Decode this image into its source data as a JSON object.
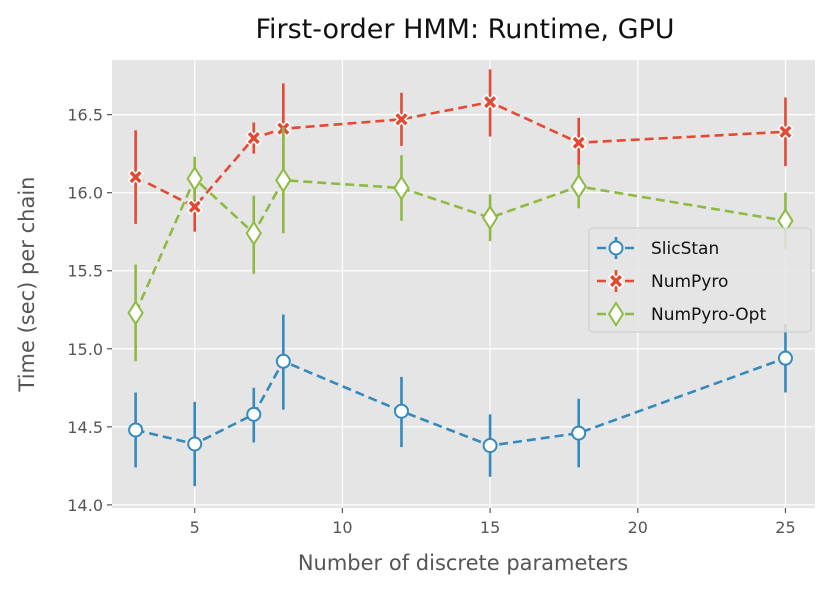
{
  "chart_data": {
    "type": "line",
    "title": "First-order HMM: Runtime, GPU",
    "xlabel": "Number of discrete parameters",
    "ylabel": "Time (sec) per chain",
    "xlim": [
      2.2,
      26.0
    ],
    "ylim": [
      13.98,
      16.85
    ],
    "xticks": [
      5,
      10,
      15,
      20,
      25
    ],
    "yticks": [
      14.0,
      14.5,
      15.0,
      15.5,
      16.0,
      16.5
    ],
    "xtick_labels": [
      "5",
      "10",
      "15",
      "20",
      "25"
    ],
    "ytick_labels": [
      "14.0",
      "14.5",
      "15.0",
      "15.5",
      "16.0",
      "16.5"
    ],
    "grid": true,
    "legend_position": "center-right",
    "x": [
      3,
      5,
      7,
      8,
      12,
      15,
      18,
      25
    ],
    "series": [
      {
        "name": "SlicStan",
        "color": "#348ABD",
        "marker": "circle",
        "values": [
          14.48,
          14.39,
          14.58,
          14.92,
          14.6,
          14.38,
          14.46,
          14.94
        ],
        "err_low": [
          14.24,
          14.12,
          14.4,
          14.61,
          14.37,
          14.18,
          14.24,
          14.72
        ],
        "err_high": [
          14.72,
          14.66,
          14.75,
          15.22,
          14.82,
          14.58,
          14.68,
          15.16
        ]
      },
      {
        "name": "NumPyro",
        "color": "#E24A33",
        "marker": "x-filled",
        "values": [
          16.1,
          15.91,
          16.35,
          16.41,
          16.47,
          16.58,
          16.32,
          16.39
        ],
        "err_low": [
          15.8,
          15.75,
          16.25,
          16.12,
          16.3,
          16.36,
          16.16,
          16.17
        ],
        "err_high": [
          16.4,
          16.07,
          16.45,
          16.7,
          16.64,
          16.79,
          16.48,
          16.61
        ]
      },
      {
        "name": "NumPyro-Opt",
        "color": "#8EBA42",
        "marker": "diamond",
        "values": [
          15.23,
          16.09,
          15.74,
          16.08,
          16.03,
          15.84,
          16.04,
          15.82
        ],
        "err_low": [
          14.92,
          15.95,
          15.48,
          15.74,
          15.82,
          15.69,
          15.9,
          15.64
        ],
        "err_high": [
          15.54,
          16.23,
          15.98,
          16.42,
          16.24,
          15.99,
          16.18,
          16.0
        ]
      }
    ]
  }
}
